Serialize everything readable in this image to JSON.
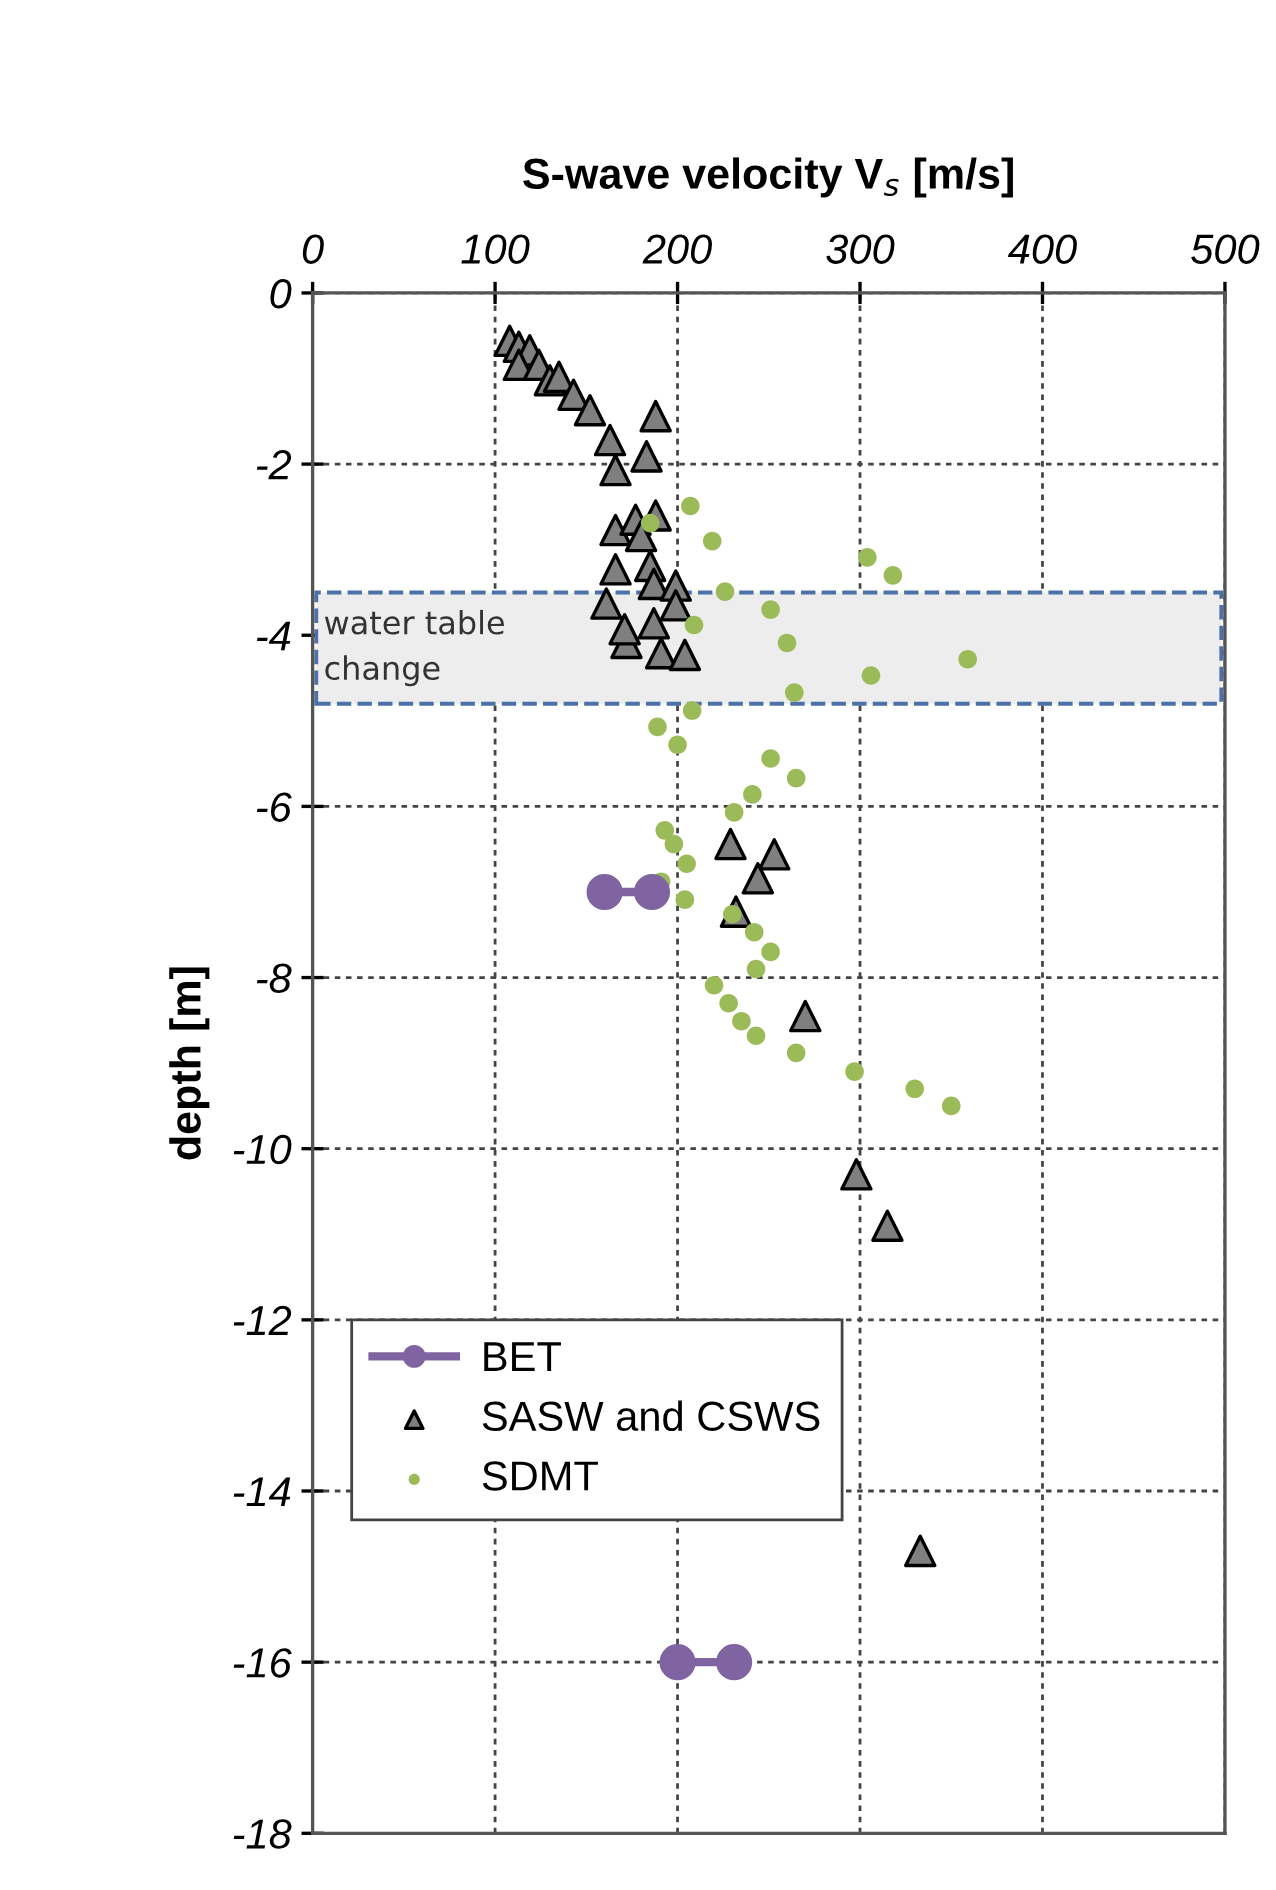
{
  "chart_data": {
    "type": "scatter",
    "xlabel": "S-wave velocity V$_{s}$ [m/s]",
    "ylabel": "depth [m]",
    "xlim": [
      0,
      500
    ],
    "xticks": [
      0,
      100,
      200,
      300,
      400,
      500
    ],
    "ylim": [
      -18,
      0
    ],
    "yticks": [
      0,
      -2,
      -4,
      -6,
      -8,
      -10,
      -12,
      -14,
      -16,
      -18
    ],
    "grid": true,
    "legend": "lower left",
    "bands": [
      {
        "axis": "y",
        "from": -3.5,
        "to": -4.8,
        "label": "water table\nchange",
        "color": "#ededed"
      }
    ],
    "series": [
      {
        "name": "BET",
        "type": "line",
        "marker": "circle",
        "color": "#8064a2",
        "x": [
          160,
          186,
          null,
          200,
          231
        ],
        "values": [
          -7.0,
          -7.0,
          null,
          -16.0,
          -16.0
        ]
      },
      {
        "name": "SASW and CSWS",
        "type": "scatter",
        "marker": "triangle",
        "color": "#7f7f7f",
        "x": [
          108,
          113,
          119,
          113,
          124,
          130,
          135,
          143,
          152,
          188,
          163,
          183,
          166,
          166,
          177,
          188,
          180,
          166,
          185,
          187,
          199,
          161,
          199,
          187,
          172,
          171,
          191,
          204,
          229,
          253,
          244,
          232,
          270,
          298,
          315,
          333
        ],
        "values": [
          -0.56,
          -0.63,
          -0.67,
          -0.84,
          -0.84,
          -1.02,
          -0.98,
          -1.19,
          -1.37,
          -1.44,
          -1.72,
          -1.91,
          -2.07,
          -2.77,
          -2.65,
          -2.6,
          -2.84,
          -3.23,
          -3.19,
          -3.4,
          -3.42,
          -3.63,
          -3.65,
          -3.86,
          -4.09,
          -3.93,
          -4.21,
          -4.23,
          -6.44,
          -6.56,
          -6.84,
          -7.23,
          -8.45,
          -10.3,
          -10.9,
          -14.7
        ]
      },
      {
        "name": "SDMT",
        "marker": "circle",
        "color": "#9bbb59",
        "x": [
          207,
          185,
          219,
          304,
          318,
          226,
          251,
          209,
          260,
          359,
          306,
          264,
          208,
          189,
          200,
          251,
          265,
          241,
          231,
          193,
          198,
          205,
          191,
          204,
          230,
          242,
          251,
          243,
          220,
          228,
          235,
          243,
          265,
          297,
          330,
          350
        ],
        "values": [
          -2.49,
          -2.69,
          -2.9,
          -3.09,
          -3.3,
          -3.49,
          -3.7,
          -3.88,
          -4.09,
          -4.28,
          -4.47,
          -4.67,
          -4.88,
          -5.07,
          -5.28,
          -5.44,
          -5.67,
          -5.86,
          -6.07,
          -6.28,
          -6.44,
          -6.67,
          -6.88,
          -7.09,
          -7.26,
          -7.47,
          -7.7,
          -7.9,
          -8.09,
          -8.3,
          -8.51,
          -8.68,
          -8.88,
          -9.1,
          -9.3,
          -9.5
        ]
      }
    ]
  }
}
